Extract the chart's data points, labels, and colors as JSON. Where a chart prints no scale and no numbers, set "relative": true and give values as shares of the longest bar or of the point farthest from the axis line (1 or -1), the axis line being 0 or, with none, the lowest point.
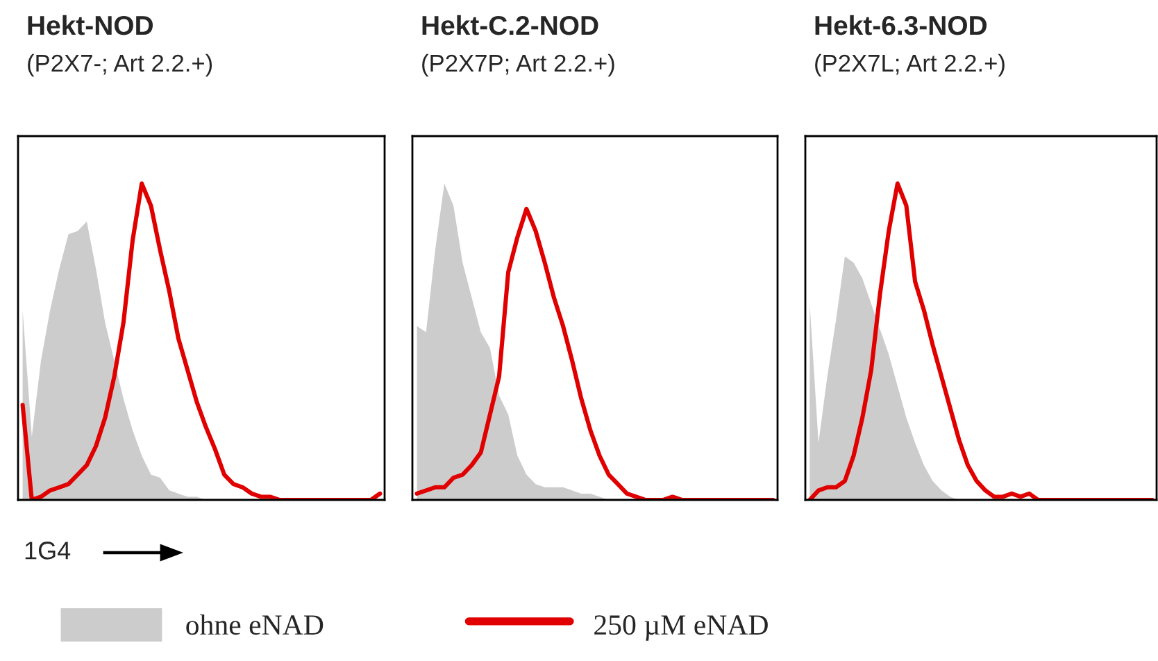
{
  "chart_data": [
    {
      "type": "line",
      "title": "Hekt-NOD",
      "subtitle": "(P2X7-; Art 2.2.+)",
      "xlabel": "1G4",
      "relative": true,
      "legend": "bottom",
      "categories": [
        null,
        null,
        null,
        null,
        null,
        null,
        null,
        null,
        null,
        null,
        null,
        null,
        null,
        null,
        null,
        null,
        null,
        null,
        null,
        null,
        null,
        null,
        null,
        null,
        null,
        null,
        null,
        null,
        null,
        null,
        null,
        null,
        null,
        null,
        null,
        null,
        null,
        null,
        null,
        null
      ],
      "series": [
        {
          "name": "ohne eNAD",
          "type": "area",
          "color": "#cccccc",
          "values": [
            0.6,
            0.2,
            0.44,
            0.6,
            0.73,
            0.84,
            0.85,
            0.88,
            0.73,
            0.56,
            0.44,
            0.32,
            0.22,
            0.14,
            0.08,
            0.07,
            0.03,
            0.02,
            0.01,
            0.01,
            0,
            0,
            0,
            0,
            0,
            0,
            0,
            0,
            0,
            0,
            0,
            0,
            0,
            0,
            0,
            0,
            0,
            0,
            0,
            0
          ]
        },
        {
          "name": "250 µM eNAD",
          "color": "#e00000",
          "values": [
            0.3,
            0,
            0.01,
            0.03,
            0.04,
            0.05,
            0.08,
            0.11,
            0.17,
            0.26,
            0.39,
            0.56,
            0.82,
            1.0,
            0.93,
            0.79,
            0.66,
            0.51,
            0.41,
            0.31,
            0.23,
            0.16,
            0.08,
            0.05,
            0.04,
            0.02,
            0.01,
            0.01,
            0,
            0,
            0,
            0,
            0,
            0,
            0,
            0,
            0,
            0,
            0,
            0.02
          ]
        }
      ]
    },
    {
      "type": "line",
      "title": "Hekt-C.2-NOD",
      "subtitle": "(P2X7P; Art 2.2.+)",
      "relative": true,
      "categories": [
        null,
        null,
        null,
        null,
        null,
        null,
        null,
        null,
        null,
        null,
        null,
        null,
        null,
        null,
        null,
        null,
        null,
        null,
        null,
        null,
        null,
        null,
        null,
        null,
        null,
        null,
        null,
        null,
        null,
        null,
        null,
        null,
        null,
        null,
        null,
        null,
        null,
        null,
        null,
        null
      ],
      "series": [
        {
          "type": "area",
          "color": "#cccccc",
          "values": [
            0.55,
            0.53,
            0.79,
            1.0,
            0.93,
            0.75,
            0.64,
            0.53,
            0.48,
            0.33,
            0.27,
            0.14,
            0.08,
            0.05,
            0.04,
            0.04,
            0.04,
            0.03,
            0.02,
            0.02,
            0.01,
            0,
            0,
            0,
            0,
            0,
            0,
            0,
            0,
            0,
            0,
            0,
            0,
            0,
            0,
            0,
            0,
            0,
            0,
            0
          ]
        },
        {
          "color": "#e00000",
          "values": [
            0.02,
            0.03,
            0.04,
            0.04,
            0.07,
            0.08,
            0.11,
            0.15,
            0.27,
            0.39,
            0.72,
            0.83,
            0.92,
            0.85,
            0.75,
            0.64,
            0.55,
            0.44,
            0.32,
            0.22,
            0.14,
            0.08,
            0.05,
            0.02,
            0.01,
            0,
            0,
            0,
            0.01,
            0,
            0,
            0,
            0,
            0,
            0,
            0,
            0,
            0,
            0,
            0
          ]
        }
      ]
    },
    {
      "type": "line",
      "title": "Hekt-6.3-NOD",
      "subtitle": "(P2X7L; Art 2.2.+)",
      "relative": true,
      "categories": [
        null,
        null,
        null,
        null,
        null,
        null,
        null,
        null,
        null,
        null,
        null,
        null,
        null,
        null,
        null,
        null,
        null,
        null,
        null,
        null,
        null,
        null,
        null,
        null,
        null,
        null,
        null,
        null,
        null,
        null,
        null,
        null,
        null,
        null,
        null,
        null,
        null,
        null,
        null,
        null
      ],
      "series": [
        {
          "type": "area",
          "color": "#cccccc",
          "values": [
            0.62,
            0.18,
            0.39,
            0.57,
            0.77,
            0.75,
            0.7,
            0.62,
            0.54,
            0.46,
            0.36,
            0.26,
            0.18,
            0.11,
            0.06,
            0.03,
            0.01,
            0,
            0,
            0,
            0,
            0,
            0,
            0,
            0,
            0,
            0,
            0,
            0,
            0,
            0,
            0,
            0,
            0,
            0,
            0,
            0,
            0,
            0,
            0
          ]
        },
        {
          "color": "#e00000",
          "values": [
            0,
            0.03,
            0.04,
            0.04,
            0.06,
            0.14,
            0.26,
            0.41,
            0.65,
            0.85,
            1.0,
            0.93,
            0.69,
            0.6,
            0.49,
            0.39,
            0.29,
            0.19,
            0.11,
            0.06,
            0.03,
            0.01,
            0.01,
            0.02,
            0.01,
            0.02,
            0,
            0,
            0,
            0,
            0,
            0,
            0,
            0,
            0,
            0,
            0,
            0,
            0,
            0
          ]
        }
      ]
    }
  ]
}
